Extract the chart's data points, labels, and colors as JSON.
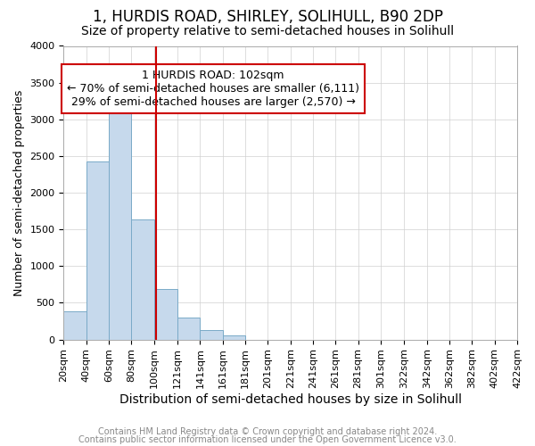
{
  "title": "1, HURDIS ROAD, SHIRLEY, SOLIHULL, B90 2DP",
  "subtitle": "Size of property relative to semi-detached houses in Solihull",
  "xlabel": "Distribution of semi-detached houses by size in Solihull",
  "ylabel": "Number of semi-detached properties",
  "footnote1": "Contains HM Land Registry data © Crown copyright and database right 2024.",
  "footnote2": "Contains public sector information licensed under the Open Government Licence v3.0.",
  "annotation_line1": "1 HURDIS ROAD: 102sqm",
  "annotation_line2": "← 70% of semi-detached houses are smaller (6,111)",
  "annotation_line3": "29% of semi-detached houses are larger (2,570) →",
  "property_size_sqm": 102,
  "bin_edges": [
    20,
    40,
    60,
    80,
    100,
    121,
    141,
    161,
    181,
    201,
    221,
    241,
    261,
    281,
    301,
    322,
    342,
    362,
    382,
    402,
    422
  ],
  "bin_values": [
    380,
    2420,
    3150,
    1630,
    690,
    300,
    130,
    50,
    0,
    0,
    0,
    0,
    0,
    0,
    0,
    0,
    0,
    0,
    0,
    0
  ],
  "xtick_labels": [
    "20sqm",
    "40sqm",
    "60sqm",
    "80sqm",
    "100sqm",
    "121sqm",
    "141sqm",
    "161sqm",
    "181sqm",
    "201sqm",
    "221sqm",
    "241sqm",
    "261sqm",
    "281sqm",
    "301sqm",
    "322sqm",
    "342sqm",
    "362sqm",
    "382sqm",
    "402sqm",
    "422sqm"
  ],
  "bar_color": "#c6d9ec",
  "bar_edge_color": "#7aaac8",
  "property_line_color": "#cc0000",
  "annotation_box_color": "#cc0000",
  "annotation_fill": "white",
  "ylim": [
    0,
    4000
  ],
  "yticks": [
    0,
    500,
    1000,
    1500,
    2000,
    2500,
    3000,
    3500,
    4000
  ],
  "grid_color": "#d0d0d0",
  "title_fontsize": 12,
  "subtitle_fontsize": 10,
  "xlabel_fontsize": 10,
  "ylabel_fontsize": 9,
  "tick_fontsize": 8,
  "annotation_fontsize": 9,
  "footnote_fontsize": 7
}
